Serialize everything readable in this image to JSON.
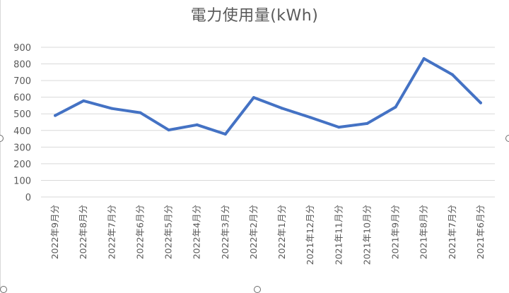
{
  "chart_data": {
    "type": "line",
    "title": "電力使用量(kWh)",
    "xlabel": "",
    "ylabel": "",
    "categories": [
      "2022年9月分",
      "2022年8月分",
      "2022年7月分",
      "2022年6月分",
      "2022年5月分",
      "2022年4月分",
      "2022年3月分",
      "2022年2月分",
      "2022年1月分",
      "2021年12月分",
      "2021年11月分",
      "2021年10月分",
      "2021年9月分",
      "2021年8月分",
      "2021年7月分",
      "2021年6月分"
    ],
    "series": [
      {
        "values": [
          490,
          578,
          532,
          507,
          403,
          434,
          378,
          598,
          533,
          478,
          420,
          442,
          541,
          832,
          736,
          566
        ]
      }
    ],
    "ylim": [
      0,
      900
    ],
    "yticks": [
      0,
      100,
      200,
      300,
      400,
      500,
      600,
      700,
      800,
      900
    ],
    "grid": "horizontal",
    "colors": {
      "line": "#4472c4",
      "grid": "#d9d9d9",
      "text": "#595959"
    }
  }
}
